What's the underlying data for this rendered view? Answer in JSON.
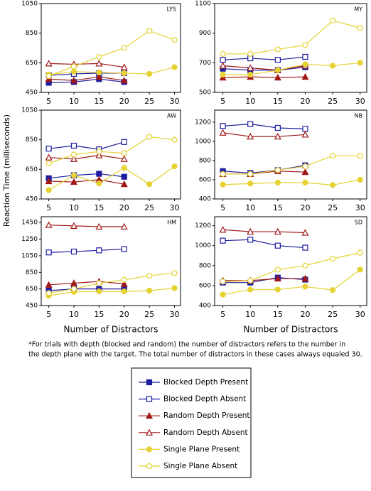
{
  "chart_data": [
    {
      "type": "line",
      "title": "LYS",
      "x": [
        5,
        10,
        15,
        20,
        25,
        30
      ],
      "xlim": [
        3.5,
        31.2
      ],
      "xticks": [
        5,
        10,
        15,
        20,
        25,
        30
      ],
      "ylim": [
        450,
        1050
      ],
      "yticks": [
        450,
        650,
        850,
        1050
      ],
      "series": [
        {
          "name": "Blocked Depth Present",
          "color": "#1c1ca0",
          "marker": "square",
          "filled": true,
          "values": [
            515,
            520,
            540,
            520,
            null,
            null
          ]
        },
        {
          "name": "Blocked Depth Absent",
          "color": "#1c1ca0",
          "marker": "square",
          "filled": false,
          "values": [
            565,
            575,
            580,
            580,
            null,
            null
          ]
        },
        {
          "name": "Random Depth Present",
          "color": "#a01818",
          "marker": "triangle",
          "filled": true,
          "values": [
            540,
            530,
            555,
            530,
            null,
            null
          ]
        },
        {
          "name": "Random Depth Absent",
          "color": "#a01818",
          "marker": "triangle",
          "filled": false,
          "values": [
            645,
            640,
            645,
            620,
            null,
            null
          ]
        },
        {
          "name": "Single Plane Present",
          "color": "#e6d232",
          "marker": "circle",
          "filled": true,
          "values": [
            570,
            590,
            585,
            580,
            575,
            620
          ]
        },
        {
          "name": "Single Plane Absent",
          "color": "#e6d232",
          "marker": "circle",
          "filled": false,
          "values": [
            560,
            625,
            690,
            750,
            865,
            805
          ]
        }
      ]
    },
    {
      "type": "line",
      "title": "MY",
      "x": [
        5,
        10,
        15,
        20,
        25,
        30
      ],
      "xlim": [
        3.5,
        31.2
      ],
      "xticks": [
        5,
        10,
        15,
        20,
        25,
        30
      ],
      "ylim": [
        500,
        1100
      ],
      "yticks": [
        500,
        700,
        900,
        1100
      ],
      "series": [
        {
          "values": [
            660,
            650,
            650,
            670,
            null,
            null
          ]
        },
        {
          "values": [
            720,
            730,
            720,
            740,
            null,
            null
          ]
        },
        {
          "values": [
            600,
            605,
            600,
            605,
            null,
            null
          ]
        },
        {
          "values": [
            680,
            665,
            650,
            680,
            null,
            null
          ]
        },
        {
          "values": [
            620,
            620,
            650,
            690,
            680,
            700
          ]
        },
        {
          "values": [
            760,
            760,
            790,
            820,
            985,
            935
          ]
        }
      ]
    },
    {
      "type": "line",
      "title": "AW",
      "y_label": "Reaction Time (milliseconds)",
      "x": [
        5,
        10,
        15,
        20,
        25,
        30
      ],
      "xlim": [
        3.5,
        31.2
      ],
      "xticks": [
        5,
        10,
        15,
        20,
        25,
        30
      ],
      "ylim": [
        450,
        1050
      ],
      "yticks": [
        450,
        650,
        850,
        1050
      ],
      "series": [
        {
          "values": [
            590,
            610,
            620,
            600,
            null,
            null
          ]
        },
        {
          "values": [
            790,
            810,
            785,
            835,
            null,
            null
          ]
        },
        {
          "values": [
            570,
            565,
            580,
            550,
            null,
            null
          ]
        },
        {
          "values": [
            730,
            720,
            745,
            720,
            null,
            null
          ]
        },
        {
          "values": [
            510,
            610,
            555,
            660,
            550,
            670
          ]
        },
        {
          "values": [
            690,
            750,
            770,
            760,
            870,
            850
          ]
        }
      ]
    },
    {
      "type": "line",
      "title": "NB",
      "x": [
        5,
        10,
        15,
        20,
        25,
        30
      ],
      "xlim": [
        3.5,
        31.2
      ],
      "xticks": [
        5,
        10,
        15,
        20,
        25,
        30
      ],
      "ylim": [
        400,
        1325
      ],
      "yticks": [
        400,
        600,
        800,
        1000,
        1200
      ],
      "series": [
        {
          "values": [
            690,
            670,
            700,
            750,
            null,
            null
          ]
        },
        {
          "values": [
            1160,
            1180,
            1140,
            1130,
            null,
            null
          ]
        },
        {
          "values": [
            660,
            660,
            690,
            680,
            null,
            null
          ]
        },
        {
          "values": [
            1090,
            1050,
            1050,
            1070,
            null,
            null
          ]
        },
        {
          "values": [
            550,
            560,
            570,
            570,
            545,
            600
          ]
        },
        {
          "values": [
            660,
            660,
            700,
            740,
            850,
            850
          ]
        }
      ]
    },
    {
      "type": "line",
      "title": "HM",
      "x_label": "Number of Distractors",
      "x": [
        5,
        10,
        15,
        20,
        25,
        30
      ],
      "xlim": [
        3.5,
        31.2
      ],
      "xticks": [
        5,
        10,
        15,
        20,
        25,
        30
      ],
      "ylim": [
        450,
        1520
      ],
      "yticks": [
        450,
        650,
        850,
        1050,
        1250,
        1450
      ],
      "series": [
        {
          "values": [
            630,
            650,
            650,
            650,
            null,
            null
          ]
        },
        {
          "values": [
            1090,
            1100,
            1115,
            1130,
            null,
            null
          ]
        },
        {
          "values": [
            700,
            720,
            740,
            710,
            null,
            null
          ]
        },
        {
          "values": [
            1420,
            1410,
            1400,
            1400,
            null,
            null
          ]
        },
        {
          "values": [
            570,
            615,
            620,
            620,
            630,
            660
          ]
        },
        {
          "values": [
            600,
            650,
            720,
            760,
            810,
            840
          ]
        }
      ]
    },
    {
      "type": "line",
      "title": "SD",
      "x_label": "Number of Distractors",
      "x": [
        5,
        10,
        15,
        20,
        25,
        30
      ],
      "xlim": [
        3.5,
        31.2
      ],
      "xticks": [
        5,
        10,
        15,
        20,
        25,
        30
      ],
      "ylim": [
        400,
        1290
      ],
      "yticks": [
        400,
        600,
        800,
        1000,
        1200
      ],
      "series": [
        {
          "values": [
            630,
            630,
            680,
            660,
            null,
            null
          ]
        },
        {
          "values": [
            1050,
            1060,
            1000,
            980,
            null,
            null
          ]
        },
        {
          "values": [
            650,
            650,
            670,
            670,
            null,
            null
          ]
        },
        {
          "values": [
            1160,
            1140,
            1140,
            1130,
            null,
            null
          ]
        },
        {
          "values": [
            510,
            560,
            560,
            590,
            555,
            760
          ]
        },
        {
          "values": [
            640,
            650,
            760,
            800,
            870,
            930
          ]
        }
      ]
    }
  ],
  "footnote": [
    "*For trials with depth (blocked and random) the number of distractors refers to the number in",
    "the depth plane with the target.  The total number of distractors in these cases always equaled 30."
  ]
}
